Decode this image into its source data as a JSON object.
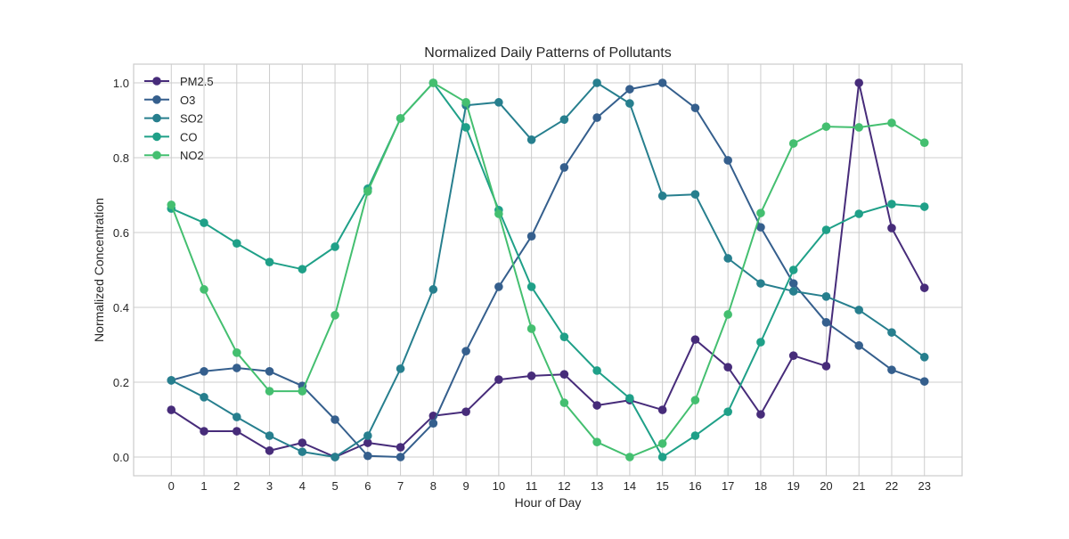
{
  "chart_data": {
    "type": "line",
    "title": "Normalized Daily Patterns of Pollutants",
    "xlabel": "Hour of Day",
    "ylabel": "Normalized Concentration",
    "x": [
      0,
      1,
      2,
      3,
      4,
      5,
      6,
      7,
      8,
      9,
      10,
      11,
      12,
      13,
      14,
      15,
      16,
      17,
      18,
      19,
      20,
      21,
      22,
      23
    ],
    "xticks": [
      "0",
      "1",
      "2",
      "3",
      "4",
      "5",
      "6",
      "7",
      "8",
      "9",
      "10",
      "11",
      "12",
      "13",
      "14",
      "15",
      "16",
      "17",
      "18",
      "19",
      "20",
      "21",
      "22",
      "23"
    ],
    "yticks": [
      "0.0",
      "0.2",
      "0.4",
      "0.6",
      "0.8",
      "1.0"
    ],
    "ylim": [
      -0.05,
      1.05
    ],
    "xlim": [
      -1.15,
      24.15
    ],
    "grid": true,
    "legend_position": "upper left",
    "series": [
      {
        "name": "PM2.5",
        "color": "#472c7a",
        "values": [
          0.126,
          0.069,
          0.069,
          0.017,
          0.038,
          0.0,
          0.038,
          0.026,
          0.11,
          0.121,
          0.207,
          0.217,
          0.221,
          0.138,
          0.152,
          0.126,
          0.314,
          0.24,
          0.114,
          0.271,
          0.243,
          1.0,
          0.612,
          0.452
        ]
      },
      {
        "name": "O3",
        "color": "#355f8d",
        "values": [
          0.205,
          0.229,
          0.238,
          0.229,
          0.19,
          0.1,
          0.003,
          0.0,
          0.09,
          0.283,
          0.455,
          0.59,
          0.774,
          0.907,
          0.983,
          1.0,
          0.933,
          0.793,
          0.614,
          0.464,
          0.36,
          0.298,
          0.233,
          0.202
        ]
      },
      {
        "name": "SO2",
        "color": "#277f8e",
        "values": [
          0.205,
          0.16,
          0.107,
          0.057,
          0.014,
          0.0,
          0.057,
          0.236,
          0.448,
          0.94,
          0.948,
          0.848,
          0.902,
          1.0,
          0.945,
          0.698,
          0.702,
          0.531,
          0.464,
          0.443,
          0.429,
          0.393,
          0.333,
          0.267
        ]
      },
      {
        "name": "CO",
        "color": "#1fa088",
        "values": [
          0.664,
          0.626,
          0.571,
          0.521,
          0.502,
          0.562,
          0.717,
          0.905,
          1.0,
          0.881,
          0.66,
          0.455,
          0.321,
          0.231,
          0.157,
          0.0,
          0.057,
          0.121,
          0.307,
          0.5,
          0.607,
          0.65,
          0.676,
          0.669
        ]
      },
      {
        "name": "NO2",
        "color": "#44bf70",
        "values": [
          0.674,
          0.448,
          0.279,
          0.176,
          0.176,
          0.379,
          0.71,
          0.905,
          1.0,
          0.948,
          0.65,
          0.343,
          0.145,
          0.04,
          0.0,
          0.036,
          0.152,
          0.381,
          0.652,
          0.838,
          0.883,
          0.881,
          0.893,
          0.84
        ]
      }
    ]
  }
}
